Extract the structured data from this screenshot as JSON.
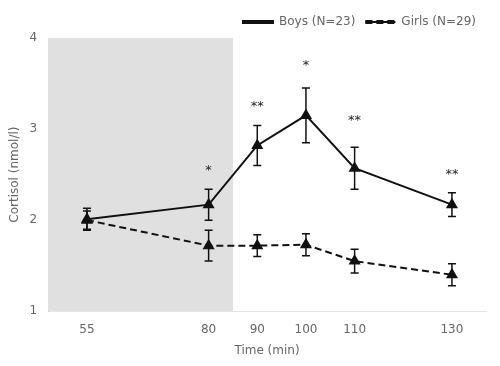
{
  "chart_data": {
    "type": "line",
    "xlabel": "Time (min)",
    "ylabel": "Cortisol (nmol/l)",
    "x": [
      55,
      80,
      90,
      100,
      110,
      130
    ],
    "series": [
      {
        "name": "Boys (N=23)",
        "color": "#111111",
        "marker": "triangle",
        "line_style": "solid",
        "values": [
          2.01,
          2.17,
          2.82,
          3.15,
          2.57,
          2.17
        ],
        "errors": [
          0.12,
          0.17,
          0.22,
          0.3,
          0.23,
          0.13
        ]
      },
      {
        "name": "Girls (N=29)",
        "color": "#111111",
        "marker": "triangle",
        "line_style": "dashed",
        "values": [
          2.0,
          1.72,
          1.72,
          1.73,
          1.55,
          1.4
        ],
        "errors": [
          0.1,
          0.17,
          0.12,
          0.12,
          0.13,
          0.12
        ]
      }
    ],
    "xlim": [
      47,
      137
    ],
    "xticks": [
      55,
      80,
      90,
      100,
      110,
      130
    ],
    "ylim": [
      1,
      4
    ],
    "yticks": [
      1,
      2,
      3,
      4
    ],
    "shaded_regions": [
      {
        "xstart": 47,
        "xend": 85,
        "color": "#e0e0e0"
      }
    ],
    "annotations": [
      {
        "x": 80,
        "y": 2.47,
        "text": "*"
      },
      {
        "x": 90,
        "y": 3.17,
        "text": "**"
      },
      {
        "x": 100,
        "y": 3.63,
        "text": "*"
      },
      {
        "x": 110,
        "y": 3.02,
        "text": "**"
      },
      {
        "x": 130,
        "y": 2.43,
        "text": "**"
      }
    ],
    "grid": false,
    "legend": "upper right"
  }
}
